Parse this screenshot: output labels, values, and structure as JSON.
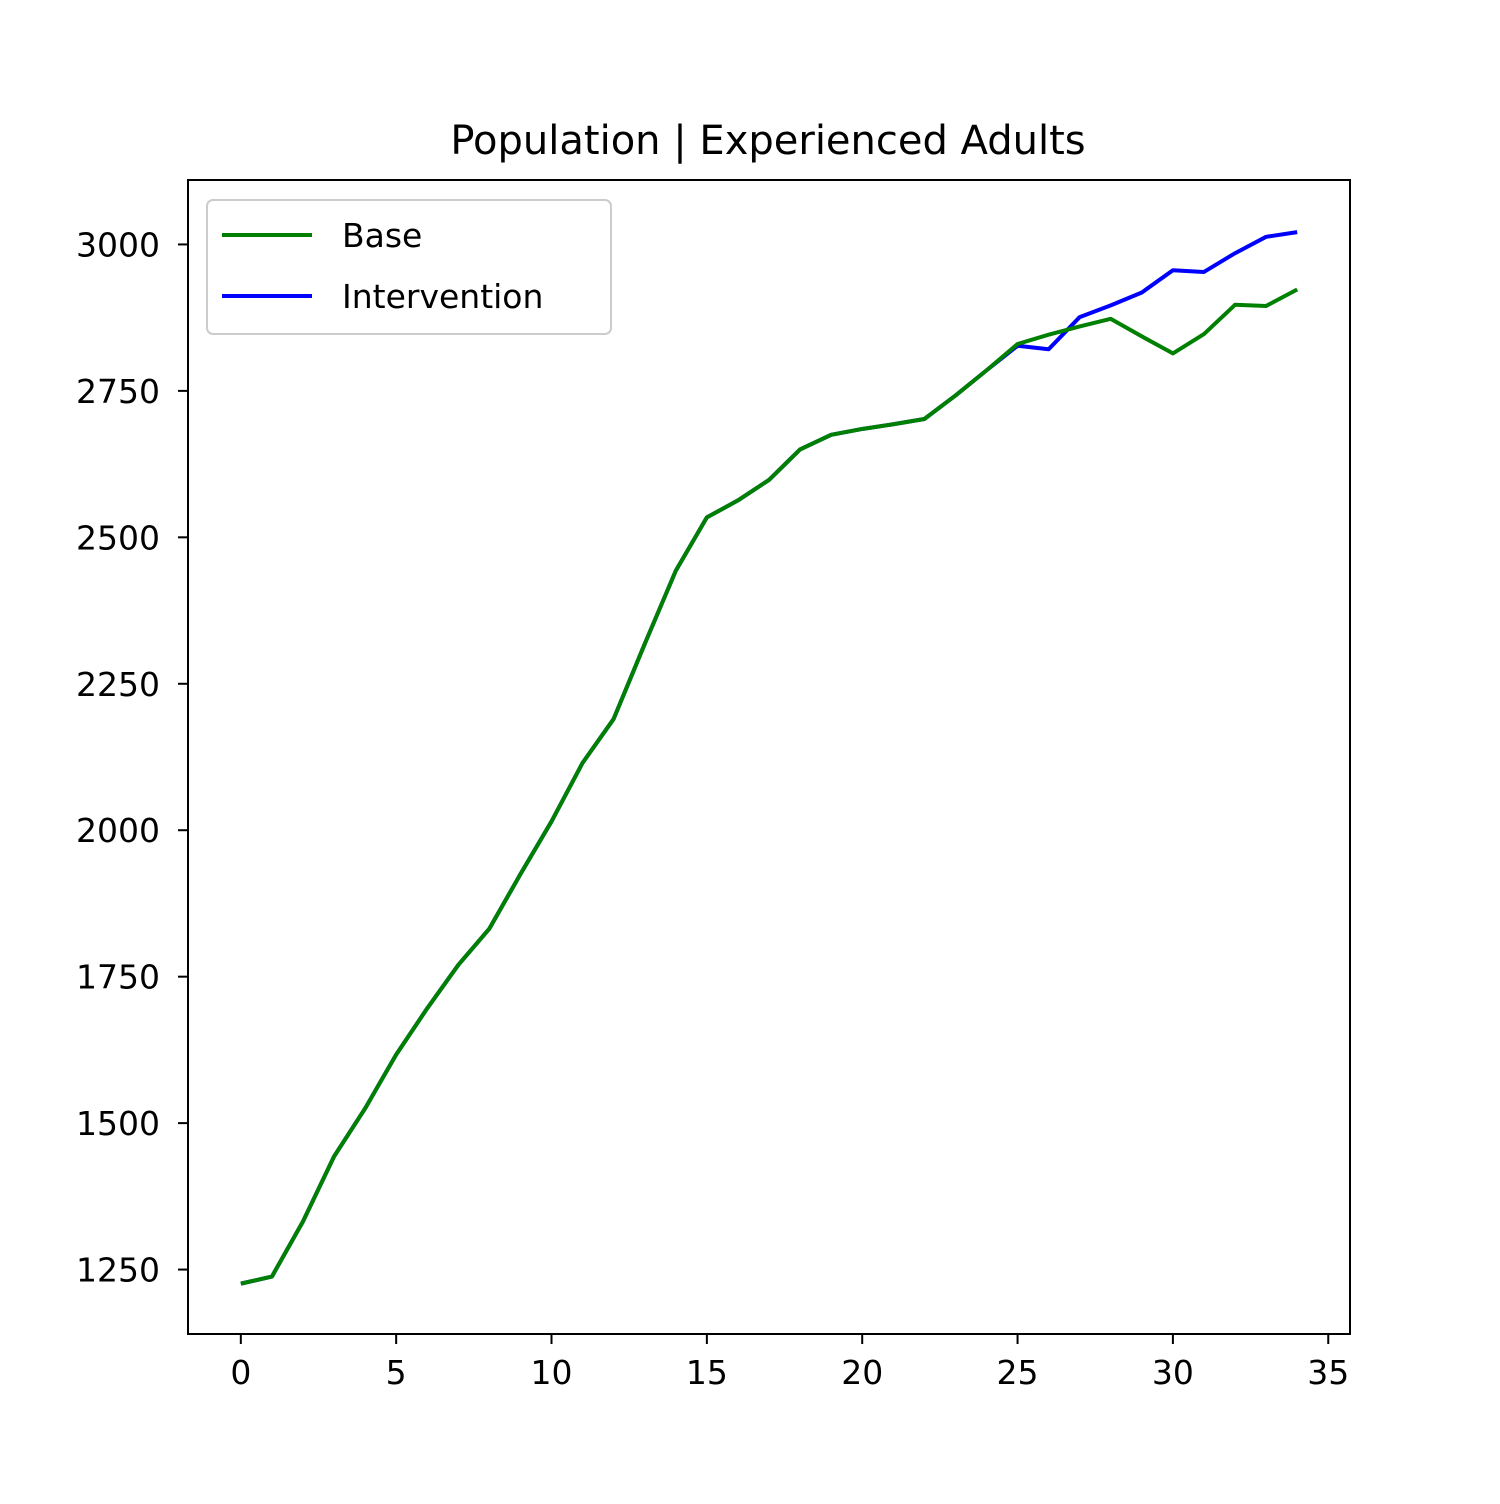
{
  "chart_data": {
    "type": "line",
    "title": "Population | Experienced Adults",
    "xlabel": "",
    "ylabel": "",
    "xlim": [
      -1.7,
      35.7
    ],
    "ylim": [
      1140,
      3110
    ],
    "x_ticks": [
      0,
      5,
      10,
      15,
      20,
      25,
      30,
      35
    ],
    "y_ticks": [
      1250,
      1500,
      1750,
      2000,
      2250,
      2500,
      2750,
      3000
    ],
    "grid": false,
    "legend_position": "top-left",
    "x": [
      0,
      1,
      2,
      3,
      4,
      5,
      6,
      7,
      8,
      9,
      10,
      11,
      12,
      13,
      14,
      15,
      16,
      17,
      18,
      19,
      20,
      21,
      22,
      23,
      24,
      25,
      26,
      27,
      28,
      29,
      30,
      31,
      32,
      33,
      34
    ],
    "series": [
      {
        "name": "Base",
        "color": "#008000",
        "values": [
          1226,
          1238,
          1332,
          1443,
          1525,
          1617,
          1696,
          1770,
          1832,
          1925,
          2015,
          2115,
          2190,
          2318,
          2443,
          2534,
          2563,
          2598,
          2650,
          2675,
          2685,
          2693,
          2702,
          2742,
          2785,
          2830,
          2846,
          2860,
          2873,
          2843,
          2814,
          2847,
          2897,
          2895,
          2923
        ]
      },
      {
        "name": "Intervention",
        "color": "#0000ff",
        "values": [
          1226,
          1238,
          1332,
          1443,
          1525,
          1617,
          1696,
          1770,
          1832,
          1925,
          2015,
          2115,
          2190,
          2318,
          2443,
          2534,
          2563,
          2598,
          2650,
          2675,
          2685,
          2693,
          2702,
          2742,
          2785,
          2827,
          2821,
          2876,
          2896,
          2918,
          2956,
          2953,
          2985,
          3013,
          3021
        ]
      }
    ]
  }
}
